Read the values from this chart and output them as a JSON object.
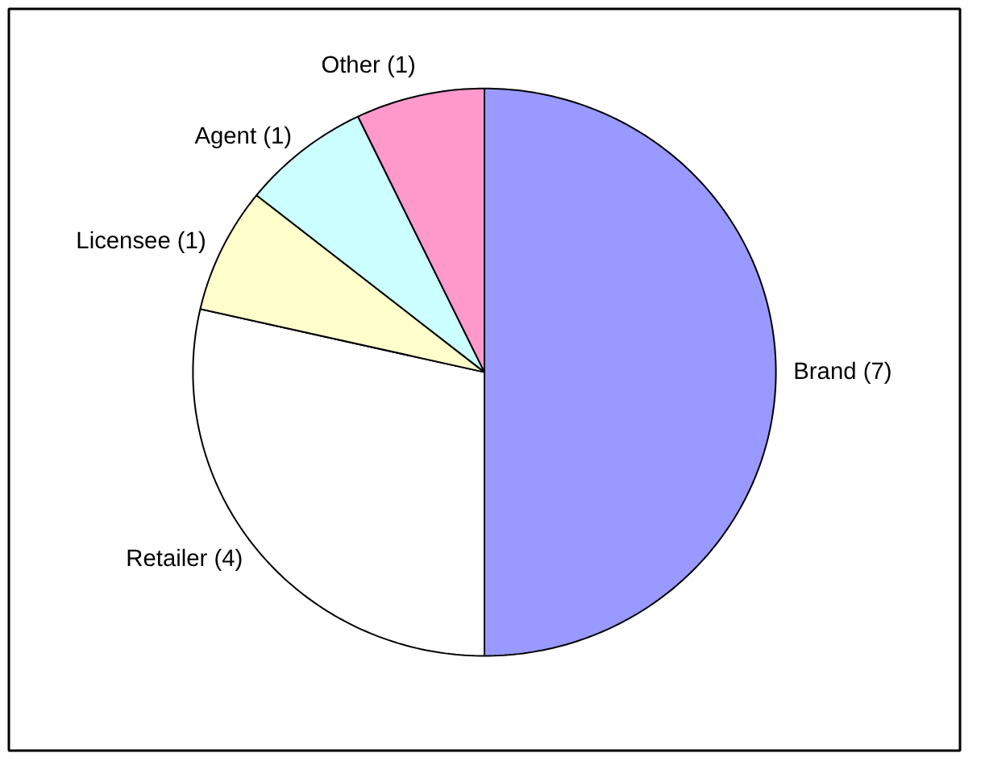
{
  "chart_data": {
    "type": "pie",
    "categories": [
      "Brand (7)",
      "Retailer (4)",
      "Licensee (1)",
      "Agent (1)",
      "Other (1)"
    ],
    "values": [
      7,
      4,
      1,
      1,
      1
    ],
    "colors": [
      "#9999ff",
      "#ffffff",
      "#ffffcc",
      "#ccffff",
      "#ff99cc"
    ]
  }
}
